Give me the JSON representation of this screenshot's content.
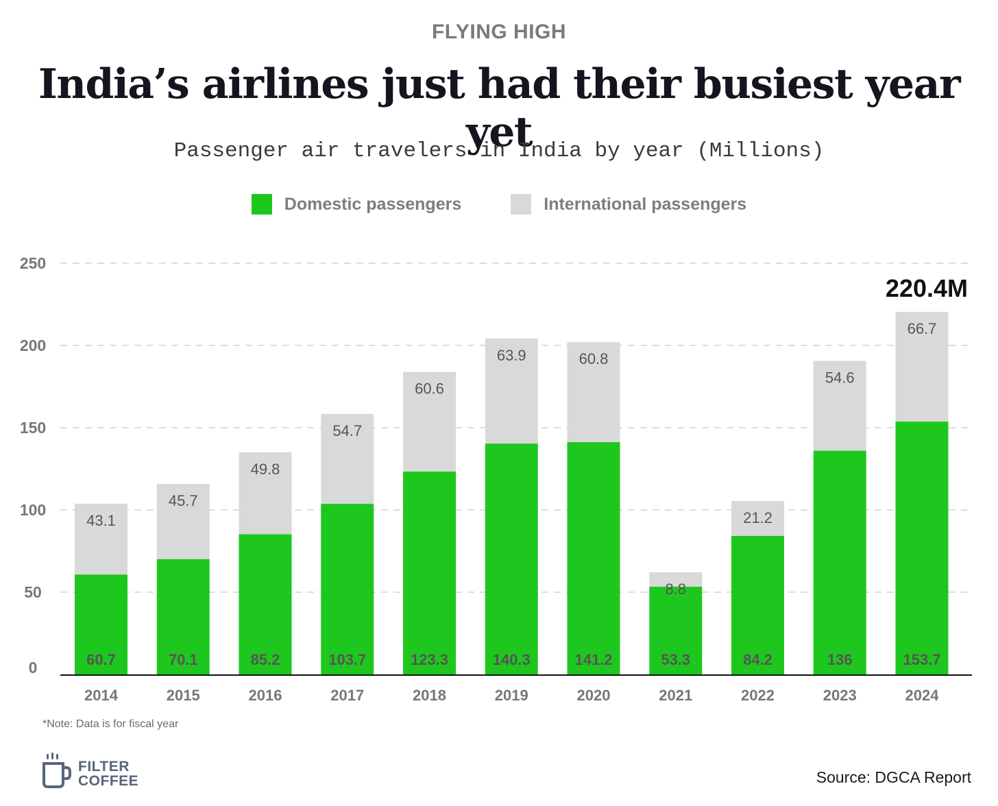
{
  "header": {
    "kicker": "FLYING HIGH",
    "headline": "India’s airlines just had their busiest year yet",
    "subtitle": "Passenger air travelers in India by year (Millions)"
  },
  "legend": {
    "domestic": "Domestic passengers",
    "international": "International passengers"
  },
  "colors": {
    "domestic": "#1ec71e",
    "international": "#d9d9d9",
    "grid": "#d3d3d3",
    "axis_text": "#777777",
    "bar_label": "#555555"
  },
  "chart_data": {
    "type": "bar",
    "stacked": true,
    "categories": [
      "2014",
      "2015",
      "2016",
      "2017",
      "2018",
      "2019",
      "2020",
      "2021",
      "2022",
      "2023",
      "2024"
    ],
    "series": [
      {
        "name": "Domestic passengers",
        "values": [
          60.7,
          70.1,
          85.2,
          103.7,
          123.3,
          140.3,
          141.2,
          53.3,
          84.2,
          136,
          153.7
        ],
        "labels": [
          "60.7",
          "70.1",
          "85.2",
          "103.7",
          "123.3",
          "140.3",
          "141.2",
          "53.3",
          "84.2",
          "136",
          "153.7"
        ]
      },
      {
        "name": "International passengers",
        "values": [
          43.1,
          45.7,
          49.8,
          54.7,
          60.6,
          63.9,
          60.8,
          8.8,
          21.2,
          54.6,
          66.7
        ],
        "labels": [
          "43.1",
          "45.7",
          "49.8",
          "54.7",
          "60.6",
          "63.9",
          "60.8",
          "8.8",
          "21.2",
          "54.6",
          "66.7"
        ]
      }
    ],
    "ylim": [
      0,
      250
    ],
    "yticks": [
      0,
      50,
      100,
      150,
      200,
      250
    ],
    "grid": true,
    "legend_position": "top-center",
    "annotation": "220.4M"
  },
  "footer": {
    "note": "*Note: Data is for fiscal year",
    "brand_line1": "FILTER",
    "brand_line2": "COFFEE",
    "source": "Source: DGCA Report"
  }
}
